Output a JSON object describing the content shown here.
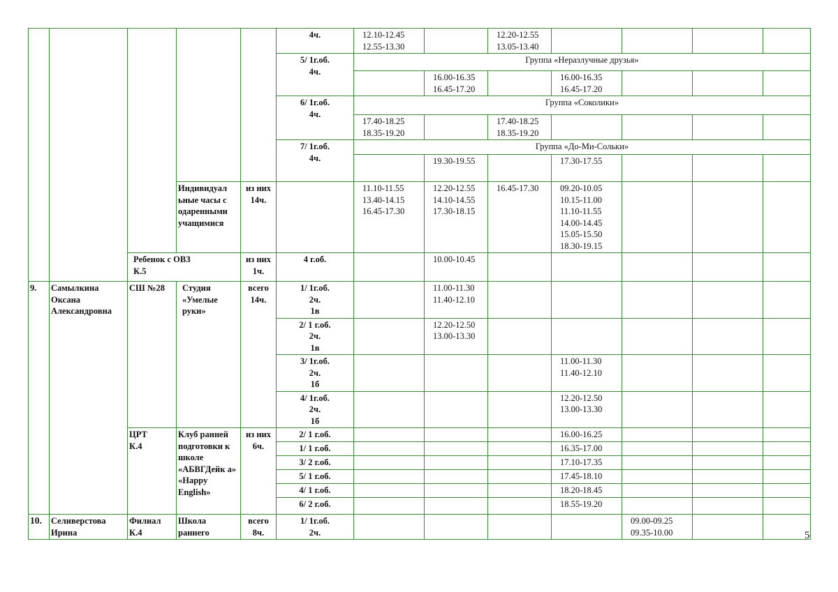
{
  "prev_block": {
    "rows": [
      {
        "group": "4ч.",
        "times": [
          "12.10-12.45\n12.55-13.30",
          "",
          "12.20-12.55\n13.05-13.40",
          "",
          "",
          "",
          ""
        ]
      },
      {
        "group": "5/ 1г.об.\n4ч.",
        "label": "Группа «Неразлучные друзья»",
        "times": [
          "",
          "16.00-16.35\n16.45-17.20",
          "",
          "16.00-16.35\n16.45-17.20",
          "",
          "",
          ""
        ]
      },
      {
        "group": "6/ 1г.об.\n4ч.",
        "label": "Группа «Соколики»",
        "times": [
          "17.40-18.25\n18.35-19.20",
          "",
          "17.40-18.25\n18.35-19.20",
          "",
          "",
          "",
          ""
        ]
      },
      {
        "group": "7/ 1г.об.\n4ч.",
        "label": "Группа «До-Ми-Сольки»",
        "times": [
          "",
          "19.30-19.55",
          "",
          "17.30-17.55",
          "",
          "",
          ""
        ]
      }
    ],
    "individual": {
      "program": "Индивидуал ьные часы с одаренными учащимися",
      "hours": "из них\n14ч.",
      "group": "",
      "times": [
        "11.10-11.55\n13.40-14.15\n16.45-17.30",
        "12.20-12.55\n14.10-14.55\n17.30-18.15",
        "16.45-17.30",
        "09.20-10.05\n10.15-11.00\n11.10-11.55\n14.00-14.45\n15.05-15.50\n18.30-19.15",
        "",
        "",
        ""
      ]
    },
    "ovz": {
      "place": "Ребенок с ОВЗ\nК.5",
      "hours": "из них\n1ч.",
      "group": "4 г.об.",
      "times": [
        "",
        "10.00-10.45",
        "",
        "",
        "",
        "",
        ""
      ]
    }
  },
  "teacher9": {
    "num": "9.",
    "name": "Самылкина Оксана Александровна",
    "place1": "СШ №28",
    "program1": "Студия «Умелые руки»",
    "hours1": "всего\n14ч.",
    "groups1": [
      {
        "group": "1/ 1г.об.\n2ч.\n1в",
        "times": [
          "",
          "11.00-11.30\n11.40-12.10",
          "",
          "",
          "",
          "",
          ""
        ]
      },
      {
        "group": "2/ 1 г.об.\n2ч.\n1в",
        "times": [
          "",
          "12.20-12.50\n13.00-13.30",
          "",
          "",
          "",
          "",
          ""
        ]
      },
      {
        "group": "3/ 1г.об.\n2ч.\n1б",
        "times": [
          "",
          "",
          "",
          "11.00-11.30\n11.40-12.10",
          "",
          "",
          ""
        ]
      },
      {
        "group": "4/ 1г.об.\n2ч.\n1б",
        "times": [
          "",
          "",
          "",
          "12.20-12.50\n13.00-13.30",
          "",
          "",
          ""
        ]
      }
    ],
    "place2": "ЦРТ\nК.4",
    "program2": "Клуб ранней подготовки к школе «АБВГДейк а»\n«Happy English»",
    "hours2": "из них\n6ч.",
    "groups2": [
      {
        "group": "2/  1 г.об.",
        "times": [
          "",
          "",
          "",
          "16.00-16.25",
          "",
          "",
          ""
        ]
      },
      {
        "group": "1/  1 г.об.",
        "times": [
          "",
          "",
          "",
          "16.35-17.00",
          "",
          "",
          ""
        ]
      },
      {
        "group": "3/  2 г.об.",
        "times": [
          "",
          "",
          "",
          "17.10-17.35",
          "",
          "",
          ""
        ]
      },
      {
        "group": "5/  1 г.об.",
        "times": [
          "",
          "",
          "",
          "17.45-18.10",
          "",
          "",
          ""
        ]
      },
      {
        "group": "4/  1 г.об.",
        "times": [
          "",
          "",
          "",
          "18.20-18.45",
          "",
          "",
          ""
        ]
      },
      {
        "group": "6/  2 г.об.",
        "times": [
          "",
          "",
          "",
          "18.55-19.20",
          "",
          "",
          ""
        ]
      }
    ]
  },
  "teacher10": {
    "num": "10.",
    "name": "Селиверстова Ирина",
    "place": "Филиал\nК.4",
    "program": "Школа раннего",
    "hours": "всего\n8ч.",
    "group": "1/ 1г.об.\n2ч.",
    "times": [
      "",
      "",
      "",
      "",
      "09.00-09.25\n09.35-10.00",
      "",
      ""
    ]
  },
  "page_number": "5",
  "colors": {
    "border": "#3a8a3a"
  }
}
